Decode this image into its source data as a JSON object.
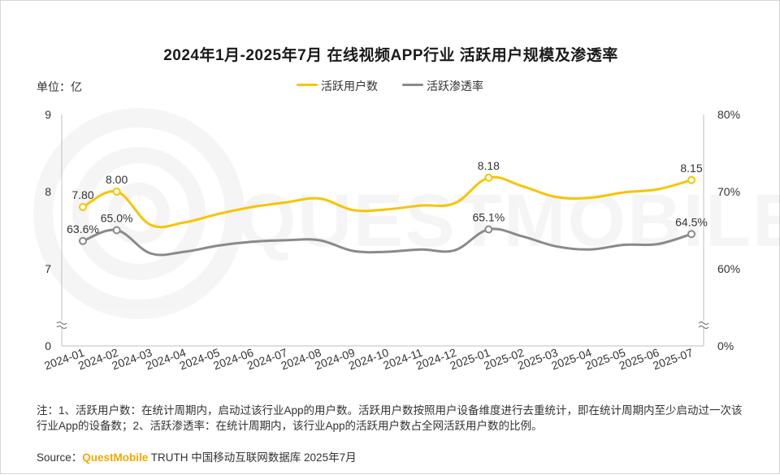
{
  "colors": {
    "users_line": "#f8c400",
    "penetration_line": "#8a8a8a",
    "brand": "#f5a800"
  },
  "chart_data": {
    "type": "line",
    "title": "2024年1月-2025年7月 在线视频APP行业 活跃用户规模及渗透率",
    "unit_label": "单位：亿",
    "categories": [
      "2024-01",
      "2024-02",
      "2024-03",
      "2024-04",
      "2024-05",
      "2024-06",
      "2024-07",
      "2024-08",
      "2024-09",
      "2024-10",
      "2024-11",
      "2024-12",
      "2025-01",
      "2025-02",
      "2025-03",
      "2025-04",
      "2025-05",
      "2025-06",
      "2025-07"
    ],
    "series": [
      {
        "name": "活跃用户数",
        "axis": "left",
        "values": [
          7.8,
          8.0,
          7.57,
          7.6,
          7.71,
          7.8,
          7.86,
          7.91,
          7.76,
          7.77,
          7.82,
          7.85,
          8.18,
          8.07,
          7.93,
          7.92,
          7.99,
          8.03,
          8.15
        ],
        "data_labels": {
          "0": "7.80",
          "1": "8.00",
          "12": "8.18",
          "18": "8.15"
        }
      },
      {
        "name": "活跃渗透率",
        "axis": "right",
        "values": [
          63.6,
          65.0,
          62.0,
          62.2,
          63.0,
          63.5,
          63.7,
          63.7,
          62.3,
          62.2,
          62.5,
          62.4,
          65.1,
          64.2,
          62.9,
          62.5,
          63.1,
          63.2,
          64.5
        ],
        "data_labels": {
          "0": "63.6%",
          "1": "65.0%",
          "12": "65.1%",
          "18": "64.5%"
        }
      }
    ],
    "y_left": {
      "ticks": [
        "9",
        "8",
        "7",
        "0"
      ],
      "ylim": [
        0,
        9
      ],
      "axis_break": true
    },
    "y_right": {
      "ticks": [
        "80%",
        "70%",
        "60%",
        "0%"
      ],
      "ylim": [
        0,
        80
      ],
      "axis_break": true
    },
    "legend_position": "top-center",
    "grid": false
  },
  "legend": {
    "users": "活跃用户数",
    "penetration": "活跃渗透率"
  },
  "footnote": "注：1、活跃用户数：在统计周期内，启动过该行业App的用户数。活跃用户数按照用户设备维度进行去重统计，即在统计周期内至少启动过一次该行业App的设备数；2、活跃渗透率：在统计周期内，该行业App的活跃用户数占全网活跃用户数的比例。",
  "source": {
    "prefix": "Source：",
    "brand": "QuestMobile",
    "suffix": " TRUTH 中国移动互联网数据库 2025年7月"
  },
  "watermark": "QUESTMOBILE"
}
